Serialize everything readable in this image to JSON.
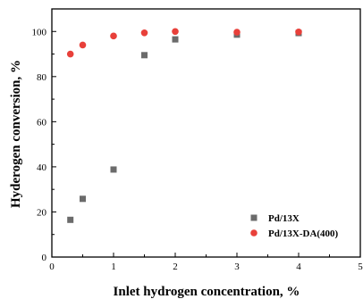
{
  "chart_data": {
    "type": "scatter",
    "title": "",
    "xlabel": "Inlet hydrogen concentration, %",
    "ylabel": "Hyderogen conversion, %",
    "xlim": [
      0,
      5
    ],
    "ylim": [
      0,
      110
    ],
    "xticks": [
      0,
      1,
      2,
      3,
      4,
      5
    ],
    "yticks": [
      0,
      20,
      40,
      60,
      80,
      100
    ],
    "grid": false,
    "legend_position": "bottom-right",
    "series": [
      {
        "name": "Pd/13X",
        "marker": "square",
        "color": "#6b6b6b",
        "x": [
          0.3,
          0.5,
          1.0,
          1.5,
          2.0,
          3.0,
          4.0
        ],
        "y": [
          16.5,
          25.8,
          38.8,
          89.5,
          96.5,
          98.6,
          99.3
        ]
      },
      {
        "name": "Pd/13X-DA(400)",
        "marker": "circle",
        "color": "#e8403a",
        "x": [
          0.3,
          0.5,
          1.0,
          1.5,
          2.0,
          3.0,
          4.0
        ],
        "y": [
          90.0,
          94.0,
          98.0,
          99.4,
          100.0,
          99.7,
          99.8
        ]
      }
    ]
  }
}
